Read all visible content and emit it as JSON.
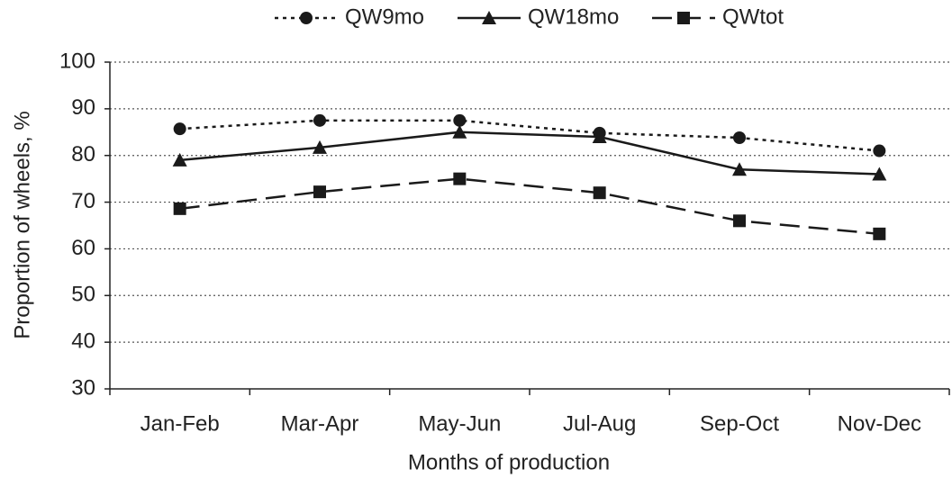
{
  "chart_data": {
    "type": "line",
    "x_label": "Months of production",
    "y_label": "Proportion of wheels, %",
    "categories": [
      "Jan-Feb",
      "Mar-Apr",
      "May-Jun",
      "Jul-Aug",
      "Sep-Oct",
      "Nov-Dec"
    ],
    "series": [
      {
        "name": "QW9mo",
        "color": "#1a1a1a",
        "line_style": "dotted",
        "marker": "circle",
        "values": [
          85.7,
          87.5,
          87.5,
          84.8,
          83.8,
          81
        ]
      },
      {
        "name": "QW18mo",
        "color": "#1a1a1a",
        "line_style": "solid",
        "marker": "triangle",
        "values": [
          79,
          81.7,
          85,
          84,
          77,
          76
        ]
      },
      {
        "name": "QWtot",
        "color": "#1a1a1a",
        "line_style": "dashed",
        "marker": "square",
        "values": [
          68.6,
          72.2,
          75,
          72,
          66,
          63.2
        ]
      }
    ],
    "ylim": [
      30,
      100
    ],
    "yticks": [
      30,
      40,
      50,
      60,
      70,
      80,
      90,
      100
    ],
    "grid": true,
    "legend": "top"
  }
}
